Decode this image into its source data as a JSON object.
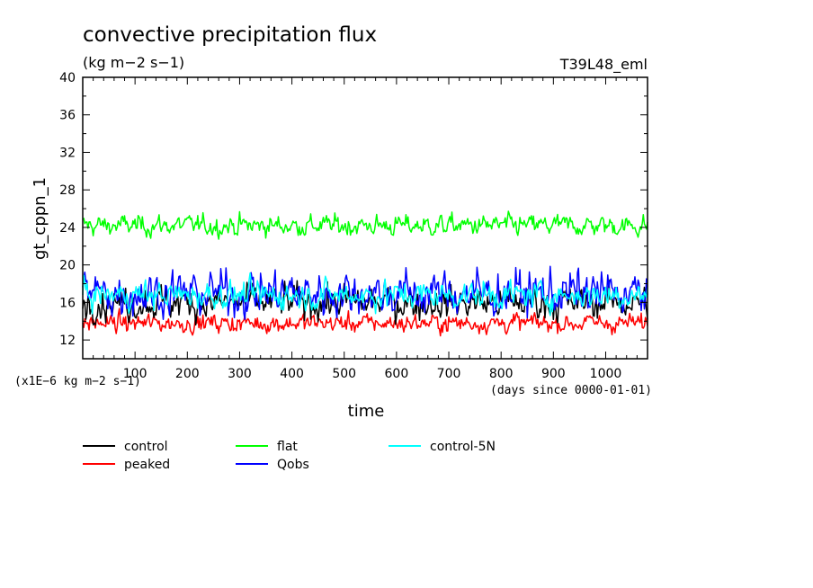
{
  "chart_data": {
    "type": "line",
    "title": "convective precipitation flux",
    "subtitle": "(kg m−2 s−1)",
    "run_label": "T39L48_eml",
    "xlabel": "time",
    "ylabel": "gt_cppn_1",
    "y_scale_note": "(x1E−6 kg m−2 s−1)",
    "x_units_note": "(days since 0000-01-01)",
    "xlim": [
      0,
      1080
    ],
    "ylim": [
      10,
      40
    ],
    "xticks": [
      100,
      200,
      300,
      400,
      500,
      600,
      700,
      800,
      900,
      1000
    ],
    "yticks": [
      12,
      16,
      20,
      24,
      28,
      32,
      36,
      40
    ],
    "grid": false,
    "legend_position": "below",
    "series": [
      {
        "name": "control",
        "color": "#000000",
        "mean": 16.0,
        "spread": 1.6,
        "min": 13.6,
        "max": 19.8
      },
      {
        "name": "peaked",
        "color": "#ff0000",
        "mean": 13.8,
        "spread": 0.9,
        "min": 11.4,
        "max": 16.0
      },
      {
        "name": "flat",
        "color": "#00ff00",
        "mean": 24.2,
        "spread": 1.0,
        "min": 22.6,
        "max": 27.0
      },
      {
        "name": "Qobs",
        "color": "#0000ff",
        "mean": 17.0,
        "spread": 2.2,
        "min": 14.2,
        "max": 23.0
      },
      {
        "name": "control-5N",
        "color": "#00ffff",
        "mean": 16.8,
        "spread": 1.3,
        "min": 14.6,
        "max": 20.2
      }
    ]
  }
}
